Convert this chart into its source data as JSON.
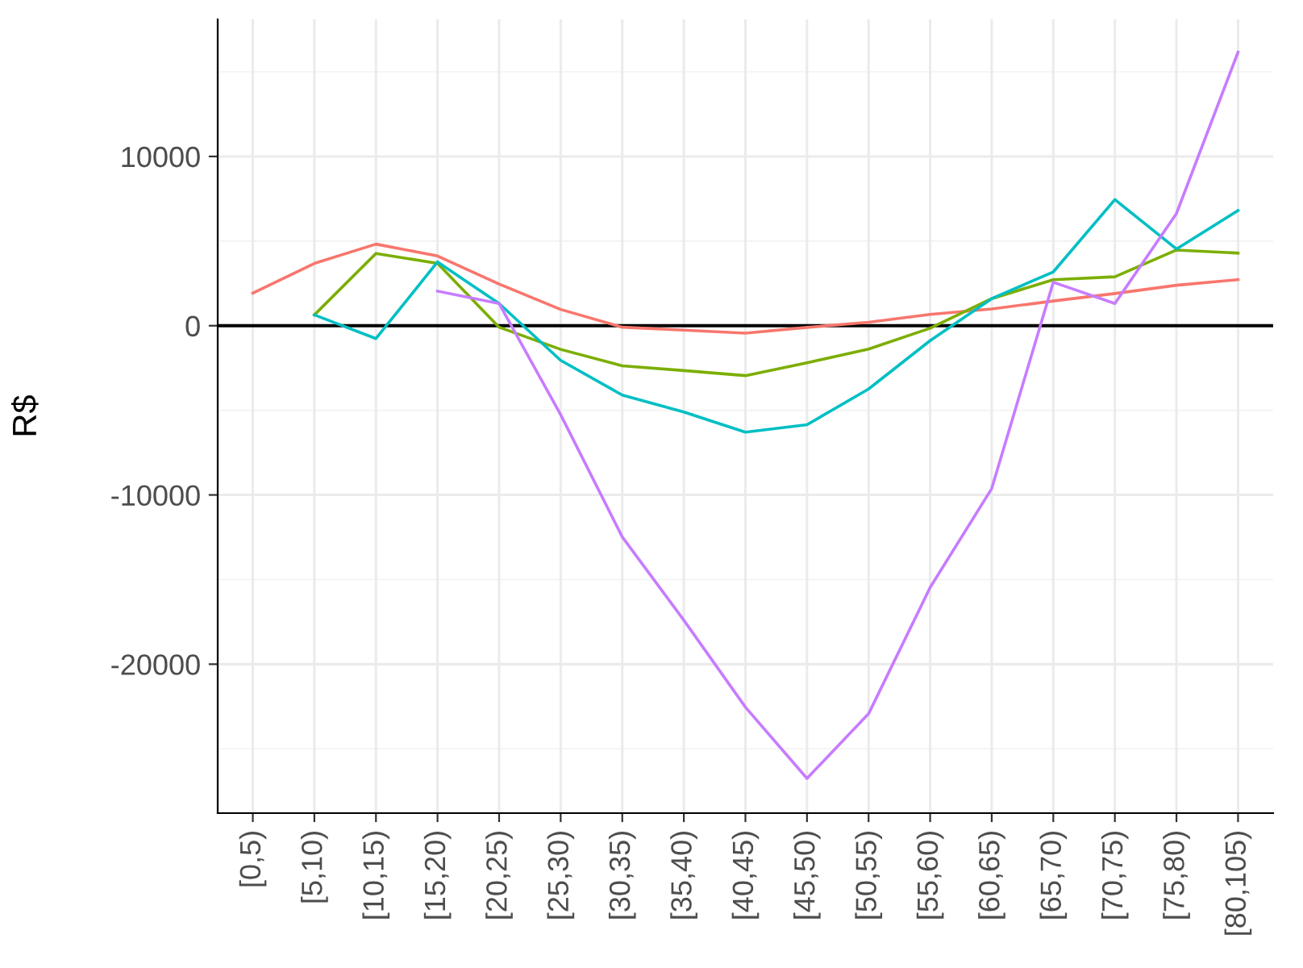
{
  "chart_data": {
    "type": "line",
    "ylabel": "R$",
    "categories": [
      "[0,5)",
      "[5,10)",
      "[10,15)",
      "[15,20)",
      "[20,25)",
      "[25,30)",
      "[30,35)",
      "[35,40)",
      "[40,45)",
      "[45,50)",
      "[50,55)",
      "[55,60)",
      "[60,65)",
      "[65,70)",
      "[70,75)",
      "[75,80)",
      "[80,105)"
    ],
    "series": [
      {
        "color": "#f8766d",
        "values": [
          1930,
          3680,
          4820,
          4120,
          2460,
          960,
          -90,
          -260,
          -440,
          -100,
          200,
          670,
          990,
          1460,
          1900,
          2390,
          2720
        ]
      },
      {
        "color": "#7cae00",
        "values": [
          null,
          640,
          4270,
          3680,
          -90,
          -1400,
          -2370,
          -2650,
          -2950,
          -2190,
          -1380,
          -150,
          1600,
          2720,
          2890,
          4470,
          4290
        ]
      },
      {
        "color": "#00bfc4",
        "values": [
          null,
          640,
          -760,
          3770,
          1310,
          -2050,
          -4100,
          -5100,
          -6290,
          -5850,
          -3740,
          -880,
          1600,
          3180,
          7450,
          4530,
          6810
        ]
      },
      {
        "color": "#c77cff",
        "values": [
          null,
          null,
          null,
          2040,
          1310,
          -5260,
          -12480,
          -17400,
          -22540,
          -26750,
          -22930,
          -15470,
          -9620,
          2570,
          1310,
          6630,
          16160
        ]
      }
    ],
    "ylim": [
      -28800,
      18100
    ],
    "yticks": [
      -20000,
      -10000,
      0,
      10000
    ],
    "ref_lines": [
      {
        "axis": "y",
        "value": 0,
        "color": "#000000"
      }
    ],
    "grid": true
  }
}
